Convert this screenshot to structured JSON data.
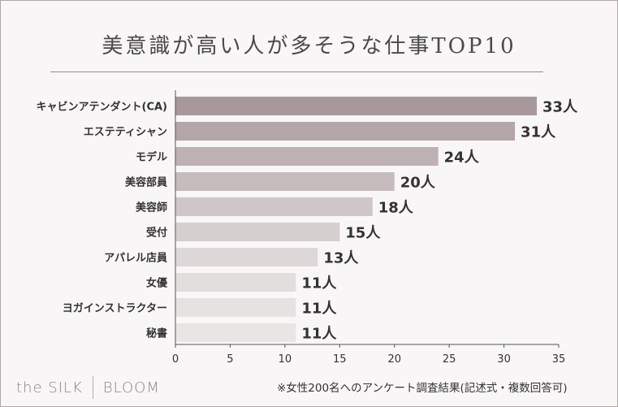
{
  "chart_data": {
    "type": "bar",
    "orientation": "horizontal",
    "title": "美意識が高い人が多そうな仕事TOP10",
    "categories": [
      "キャビンアテンダント(CA)",
      "エステティシャン",
      "モデル",
      "美容部員",
      "美容師",
      "受付",
      "アパレル店員",
      "女優",
      "ヨガインストラクター",
      "秘書"
    ],
    "values": [
      33,
      31,
      24,
      20,
      18,
      15,
      13,
      11,
      11,
      11
    ],
    "value_labels": [
      "33人",
      "31人",
      "24人",
      "20人",
      "18人",
      "15人",
      "13人",
      "11人",
      "11人",
      "11人"
    ],
    "unit": "人",
    "xlim": [
      0,
      35
    ],
    "xticks": [
      0,
      5,
      10,
      15,
      20,
      25,
      30,
      35
    ],
    "grid": false,
    "colors": [
      "#a8989b",
      "#b3a5a8",
      "#bdb1b4",
      "#c6bcbe",
      "#cfc6c8",
      "#d6cfd0",
      "#ddd7d8",
      "#e3dede",
      "#e6e2e2",
      "#e9e5e5"
    ]
  },
  "footer": {
    "logo_left": "the SILK",
    "logo_right": "BLOOM",
    "note": "※女性200名へのアンケート調査結果(記述式・複数回答可)"
  }
}
